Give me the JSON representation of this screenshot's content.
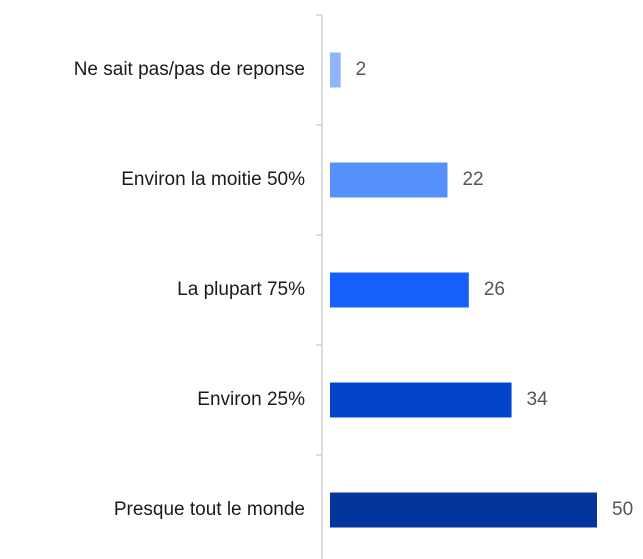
{
  "chart_data": {
    "type": "bar",
    "orientation": "horizontal",
    "categories": [
      "Ne sait pas/pas de reponse",
      "Environ la moitie 50%",
      "La plupart 75%",
      "Environ 25%",
      "Presque tout le monde"
    ],
    "values": [
      2,
      22,
      26,
      34,
      50
    ],
    "colors": [
      "#8fb4fb",
      "#5590fb",
      "#1560fb",
      "#0444cc",
      "#02369c"
    ]
  }
}
